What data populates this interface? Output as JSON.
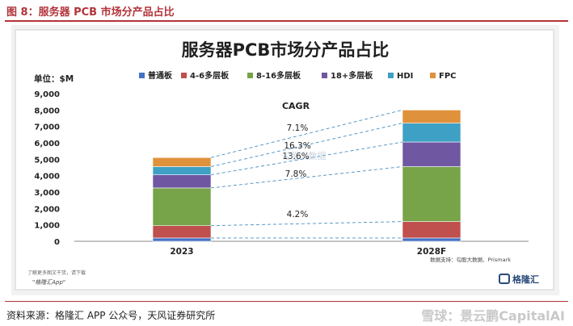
{
  "figure_header": "图 8：服务器 PCB 市场分产品占比",
  "source_text": "资料来源：格隆汇 APP 公众号，天风证券研究所",
  "footer_left_1": "了解更多图文干货，请下载",
  "footer_left_2": "\"格隆汇App\"",
  "footer_logo_text": "格隆汇",
  "data_source_note": "数据支持：勾股大数据、Prismark",
  "chart_watermark": "勾股大数据",
  "brand_watermark": "雪球：景云鹏CapitalAI",
  "chart_data": {
    "type": "bar",
    "stacked": true,
    "title": "服务器PCB市场分产品占比",
    "ylabel": "单位：$M",
    "categories": [
      "2023",
      "2028F"
    ],
    "ylim": [
      0,
      9000
    ],
    "yticks": [
      "0",
      "1,000",
      "2,000",
      "3,000",
      "4,000",
      "5,000",
      "6,000",
      "7,000",
      "8,000",
      "9,000"
    ],
    "legend_position": "top",
    "series": [
      {
        "name": "普通板",
        "color": "#4472c4",
        "values": [
          200,
          200
        ]
      },
      {
        "name": "4-6多层板",
        "color": "#c0504d",
        "values": [
          750,
          1000
        ]
      },
      {
        "name": "8-16多层板",
        "color": "#77a349",
        "values": [
          2300,
          3350
        ]
      },
      {
        "name": "18+多层板",
        "color": "#7057a2",
        "values": [
          800,
          1500
        ]
      },
      {
        "name": "HDI",
        "color": "#3ea0c4",
        "values": [
          500,
          1150
        ]
      },
      {
        "name": "FPC",
        "color": "#e0913b",
        "values": [
          550,
          800
        ]
      }
    ],
    "cagr_title": "CAGR",
    "cagr_labels": [
      "7.1%",
      "16.3%",
      "13.6%",
      "7.8%",
      "4.2%"
    ]
  }
}
